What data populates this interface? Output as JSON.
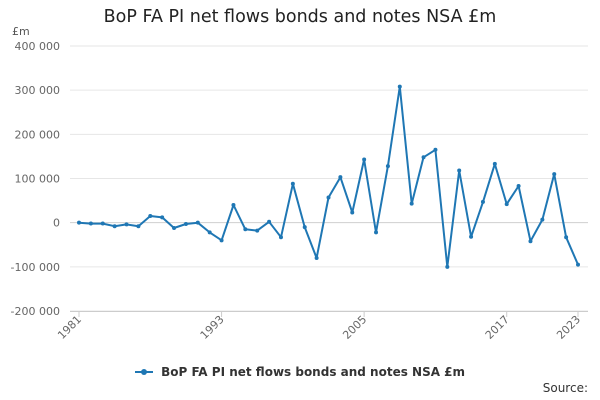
{
  "chart_data": {
    "type": "line",
    "title": "BoP FA PI net flows bonds and notes NSA £m",
    "unit_label": "£m",
    "ylim": [
      -200000,
      400000
    ],
    "yticks": [
      400000,
      300000,
      200000,
      100000,
      0,
      -100000,
      -200000
    ],
    "ytick_labels": [
      "400 000",
      "300 000",
      "200 000",
      "100 000",
      "0",
      "-100 000",
      "-200 000"
    ],
    "xlim": [
      1981,
      2023
    ],
    "xticks": [
      1981,
      1993,
      2005,
      2017,
      2023
    ],
    "xtick_labels": [
      "1981",
      "1993",
      "2005",
      "2017",
      "2023"
    ],
    "grid": "horizontal",
    "legend_position": "bottom",
    "series": [
      {
        "name": "BoP FA PI net flows bonds and notes NSA £m",
        "color": "#1f77b4",
        "x": [
          1981,
          1982,
          1983,
          1984,
          1985,
          1986,
          1987,
          1988,
          1989,
          1990,
          1991,
          1992,
          1993,
          1994,
          1995,
          1996,
          1997,
          1998,
          1999,
          2000,
          2001,
          2002,
          2003,
          2004,
          2005,
          2006,
          2007,
          2008,
          2009,
          2010,
          2011,
          2012,
          2013,
          2014,
          2015,
          2016,
          2017,
          2018,
          2019,
          2020,
          2021,
          2022,
          2023
        ],
        "values": [
          0,
          -2000,
          -2000,
          -8000,
          -4000,
          -8000,
          15000,
          12000,
          -12000,
          -3000,
          0,
          -22000,
          -40000,
          40000,
          -15000,
          -18000,
          2000,
          -33000,
          88000,
          -10000,
          -80000,
          57000,
          103000,
          23000,
          143000,
          -22000,
          128000,
          308000,
          43000,
          148000,
          165000,
          -100000,
          118000,
          -32000,
          47000,
          133000,
          42000,
          83000,
          -42000,
          7000,
          110000,
          -33000,
          -95000
        ]
      }
    ]
  },
  "legend": {
    "label": "BoP FA PI net flows bonds and notes NSA £m"
  },
  "footer": {
    "source": "Source:"
  }
}
